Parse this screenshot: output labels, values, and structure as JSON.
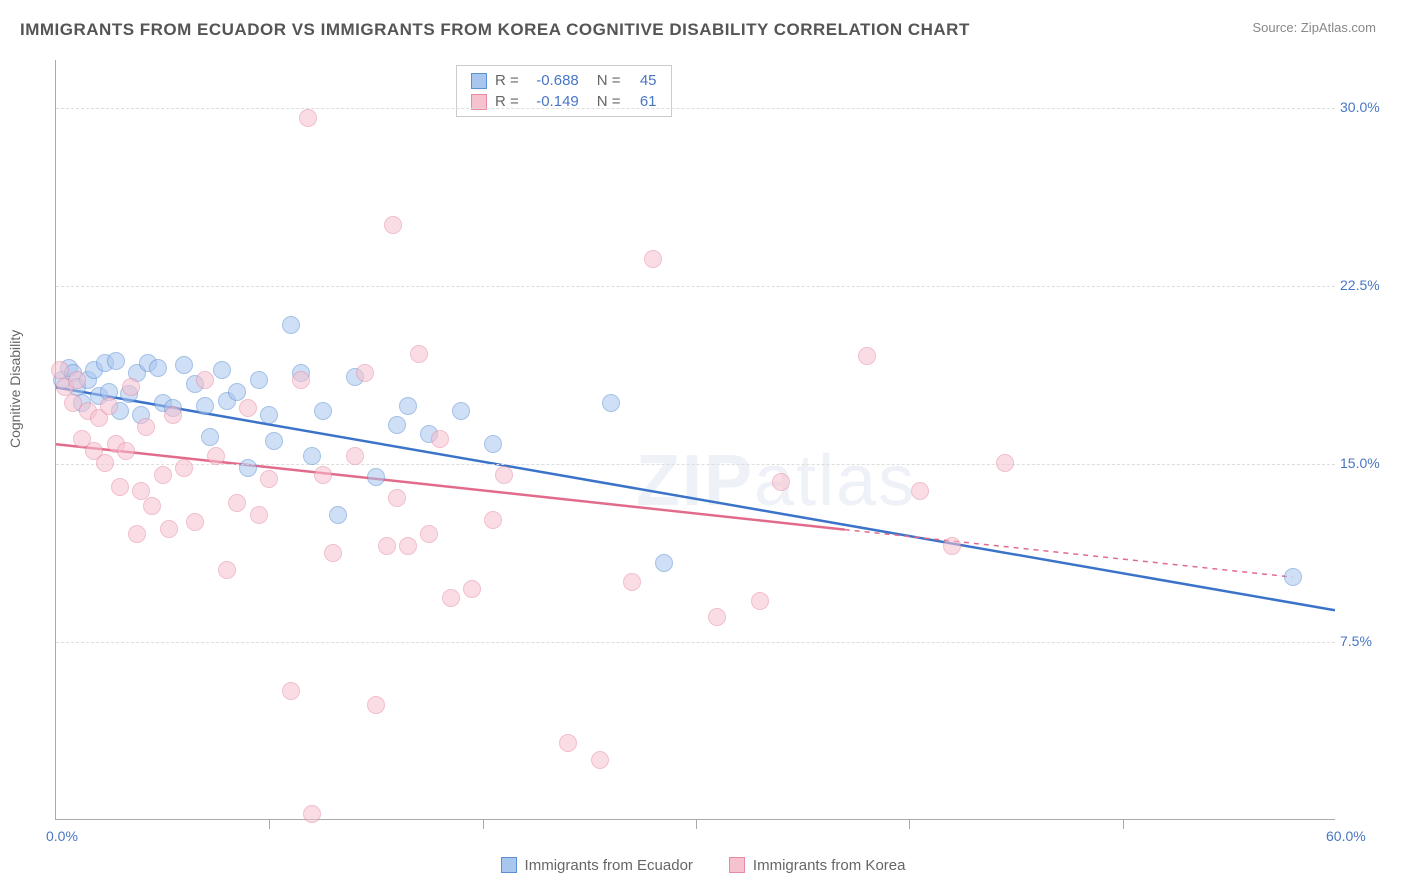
{
  "title": "IMMIGRANTS FROM ECUADOR VS IMMIGRANTS FROM KOREA COGNITIVE DISABILITY CORRELATION CHART",
  "source_prefix": "Source: ",
  "source_name": "ZipAtlas.com",
  "y_axis_label": "Cognitive Disability",
  "watermark_bold": "ZIP",
  "watermark_rest": "atlas",
  "chart": {
    "type": "scatter",
    "background_color": "#ffffff",
    "grid_color": "#dddddd",
    "axis_color": "#aaaaaa",
    "label_color": "#4876c5",
    "xlim": [
      0,
      60
    ],
    "ylim": [
      0,
      32
    ],
    "x_tick_labels": [
      {
        "x": 0,
        "label": "0.0%"
      },
      {
        "x": 60,
        "label": "60.0%"
      }
    ],
    "x_minor_ticks": [
      10,
      20,
      30,
      40,
      50
    ],
    "y_tick_labels": [
      {
        "y": 7.5,
        "label": "7.5%"
      },
      {
        "y": 15.0,
        "label": "15.0%"
      },
      {
        "y": 22.5,
        "label": "22.5%"
      },
      {
        "y": 30.0,
        "label": "30.0%"
      }
    ],
    "point_radius": 9,
    "point_opacity": 0.55,
    "line_width": 2.5,
    "series": [
      {
        "name": "Immigrants from Ecuador",
        "fill": "#a9c6ee",
        "stroke": "#5b8fd6",
        "line_color": "#3b73c9",
        "R": "-0.688",
        "N": "45",
        "trend": {
          "x1": 0,
          "y1": 18.2,
          "x2": 60,
          "y2": 8.8
        },
        "trend_dash_from_x": 60,
        "points": [
          [
            0.3,
            18.5
          ],
          [
            0.6,
            19.0
          ],
          [
            0.8,
            18.8
          ],
          [
            1.0,
            18.2
          ],
          [
            1.2,
            17.5
          ],
          [
            1.5,
            18.5
          ],
          [
            1.8,
            18.9
          ],
          [
            2.0,
            17.8
          ],
          [
            2.3,
            19.2
          ],
          [
            2.5,
            18.0
          ],
          [
            2.8,
            19.3
          ],
          [
            3.0,
            17.2
          ],
          [
            3.4,
            17.9
          ],
          [
            3.8,
            18.8
          ],
          [
            4.0,
            17.0
          ],
          [
            4.3,
            19.2
          ],
          [
            4.8,
            19.0
          ],
          [
            5.0,
            17.5
          ],
          [
            5.5,
            17.3
          ],
          [
            6.0,
            19.1
          ],
          [
            6.5,
            18.3
          ],
          [
            7.0,
            17.4
          ],
          [
            7.2,
            16.1
          ],
          [
            7.8,
            18.9
          ],
          [
            8.0,
            17.6
          ],
          [
            8.5,
            18.0
          ],
          [
            9.0,
            14.8
          ],
          [
            9.5,
            18.5
          ],
          [
            10.0,
            17.0
          ],
          [
            10.2,
            15.9
          ],
          [
            11.0,
            20.8
          ],
          [
            11.5,
            18.8
          ],
          [
            12.0,
            15.3
          ],
          [
            12.5,
            17.2
          ],
          [
            13.2,
            12.8
          ],
          [
            14.0,
            18.6
          ],
          [
            15.0,
            14.4
          ],
          [
            16.0,
            16.6
          ],
          [
            16.5,
            17.4
          ],
          [
            17.5,
            16.2
          ],
          [
            19.0,
            17.2
          ],
          [
            20.5,
            15.8
          ],
          [
            26.0,
            17.5
          ],
          [
            28.5,
            10.8
          ],
          [
            58.0,
            10.2
          ]
        ]
      },
      {
        "name": "Immigrants from Korea",
        "fill": "#f6c2cf",
        "stroke": "#e88aa3",
        "line_color": "#e26b8b",
        "R": "-0.149",
        "N": "61",
        "trend": {
          "x1": 0,
          "y1": 15.8,
          "x2": 37,
          "y2": 12.2
        },
        "trend_dash_from_x": 37,
        "trend_dash": {
          "x1": 37,
          "y1": 12.2,
          "x2": 58,
          "y2": 10.2
        },
        "points": [
          [
            0.2,
            18.9
          ],
          [
            0.4,
            18.2
          ],
          [
            0.8,
            17.5
          ],
          [
            1.0,
            18.5
          ],
          [
            1.2,
            16.0
          ],
          [
            1.5,
            17.2
          ],
          [
            1.8,
            15.5
          ],
          [
            2.0,
            16.9
          ],
          [
            2.3,
            15.0
          ],
          [
            2.5,
            17.4
          ],
          [
            2.8,
            15.8
          ],
          [
            3.0,
            14.0
          ],
          [
            3.3,
            15.5
          ],
          [
            3.5,
            18.2
          ],
          [
            3.8,
            12.0
          ],
          [
            4.0,
            13.8
          ],
          [
            4.2,
            16.5
          ],
          [
            4.5,
            13.2
          ],
          [
            5.0,
            14.5
          ],
          [
            5.3,
            12.2
          ],
          [
            5.5,
            17.0
          ],
          [
            6.0,
            14.8
          ],
          [
            6.5,
            12.5
          ],
          [
            7.0,
            18.5
          ],
          [
            7.5,
            15.3
          ],
          [
            8.0,
            10.5
          ],
          [
            8.5,
            13.3
          ],
          [
            9.0,
            17.3
          ],
          [
            9.5,
            12.8
          ],
          [
            10.0,
            14.3
          ],
          [
            11.0,
            5.4
          ],
          [
            11.5,
            18.5
          ],
          [
            11.8,
            29.5
          ],
          [
            12.0,
            0.2
          ],
          [
            12.5,
            14.5
          ],
          [
            13.0,
            11.2
          ],
          [
            14.0,
            15.3
          ],
          [
            14.5,
            18.8
          ],
          [
            15.0,
            4.8
          ],
          [
            15.5,
            11.5
          ],
          [
            15.8,
            25.0
          ],
          [
            16.0,
            13.5
          ],
          [
            16.5,
            11.5
          ],
          [
            17.0,
            19.6
          ],
          [
            17.5,
            12.0
          ],
          [
            18.0,
            16.0
          ],
          [
            18.5,
            9.3
          ],
          [
            19.5,
            9.7
          ],
          [
            20.5,
            12.6
          ],
          [
            21.0,
            14.5
          ],
          [
            24.0,
            3.2
          ],
          [
            25.5,
            2.5
          ],
          [
            27.0,
            10.0
          ],
          [
            28.0,
            23.6
          ],
          [
            31.0,
            8.5
          ],
          [
            33.0,
            9.2
          ],
          [
            34.0,
            14.2
          ],
          [
            38.0,
            19.5
          ],
          [
            40.5,
            13.8
          ],
          [
            42.0,
            11.5
          ],
          [
            44.5,
            15.0
          ]
        ]
      }
    ]
  },
  "legend_top": {
    "r_label": "R =",
    "n_label": "N ="
  },
  "legend_bottom": [
    {
      "series": 0
    },
    {
      "series": 1
    }
  ]
}
